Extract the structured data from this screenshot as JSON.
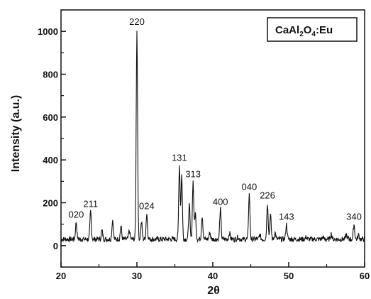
{
  "chart_data": {
    "type": "line",
    "xlabel": "2θ",
    "ylabel": "Intensity (a.u.)",
    "xlim": [
      20,
      60
    ],
    "ylim": [
      -100,
      1100
    ],
    "x_ticks": [
      "20",
      "30",
      "40",
      "50",
      "60"
    ],
    "y_ticks": [
      "0",
      "200",
      "400",
      "600",
      "800",
      "1000"
    ],
    "legend": {
      "formula": "CaAl",
      "sub1": "2",
      "mid": "O",
      "sub2": "4",
      "suffix": ":Eu"
    },
    "peaks": [
      {
        "x": 22.0,
        "y": 110,
        "label": "020"
      },
      {
        "x": 23.9,
        "y": 160,
        "label": "211"
      },
      {
        "x": 30.0,
        "y": 1010,
        "label": "220"
      },
      {
        "x": 31.3,
        "y": 150,
        "label": "024"
      },
      {
        "x": 35.6,
        "y": 375,
        "label": "131"
      },
      {
        "x": 37.4,
        "y": 300,
        "label": "313"
      },
      {
        "x": 41.0,
        "y": 170,
        "label": "400"
      },
      {
        "x": 44.8,
        "y": 240,
        "label": "040"
      },
      {
        "x": 47.2,
        "y": 200,
        "label": "226"
      },
      {
        "x": 49.7,
        "y": 100,
        "label": "143"
      },
      {
        "x": 58.6,
        "y": 100,
        "label": "340"
      }
    ],
    "minor_peaks": [
      {
        "x": 25.4,
        "y": 70
      },
      {
        "x": 26.8,
        "y": 120
      },
      {
        "x": 27.9,
        "y": 90
      },
      {
        "x": 29.0,
        "y": 70
      },
      {
        "x": 30.6,
        "y": 110
      },
      {
        "x": 35.9,
        "y": 330
      },
      {
        "x": 36.9,
        "y": 190
      },
      {
        "x": 37.7,
        "y": 150
      },
      {
        "x": 38.6,
        "y": 140
      },
      {
        "x": 39.6,
        "y": 60
      },
      {
        "x": 42.2,
        "y": 60
      },
      {
        "x": 43.3,
        "y": 40
      },
      {
        "x": 46.2,
        "y": 50
      },
      {
        "x": 47.6,
        "y": 140
      },
      {
        "x": 48.2,
        "y": 60
      },
      {
        "x": 52.3,
        "y": 40
      },
      {
        "x": 54.5,
        "y": 40
      },
      {
        "x": 55.6,
        "y": 55
      },
      {
        "x": 57.6,
        "y": 50
      },
      {
        "x": 59.2,
        "y": 50
      }
    ],
    "baseline": 30,
    "noise": 12
  }
}
